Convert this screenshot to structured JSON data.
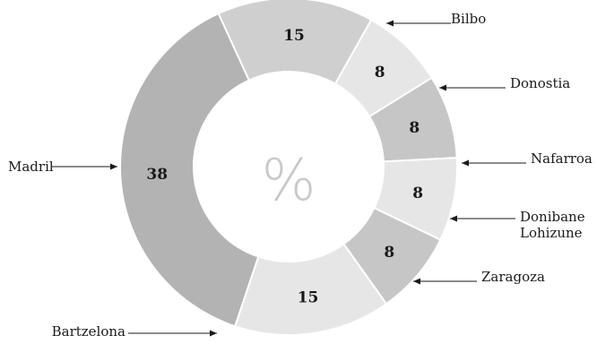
{
  "chart_data": {
    "type": "pie",
    "donut": true,
    "center_text": "%",
    "slices": [
      {
        "label": "Bilbo",
        "value": 15,
        "value_label": "15",
        "color": "#cfcfcf"
      },
      {
        "label": "Donostia",
        "value": 8,
        "value_label": "8",
        "color": "#e6e6e6"
      },
      {
        "label": "Nafarroa",
        "value": 8,
        "value_label": "8",
        "color": "#c6c6c6"
      },
      {
        "label": "Donibane Lohizune",
        "label_lines": [
          "Donibane",
          "Lohizune"
        ],
        "value": 8,
        "value_label": "8",
        "color": "#e6e6e6"
      },
      {
        "label": "Zaragoza",
        "value": 8,
        "value_label": "8",
        "color": "#c6c6c6"
      },
      {
        "label": "Bartzelona",
        "value": 15,
        "value_label": "15",
        "color": "#e6e6e6"
      },
      {
        "label": "Madril",
        "value": 38,
        "value_label": "38",
        "color": "#b3b3b3"
      }
    ]
  }
}
